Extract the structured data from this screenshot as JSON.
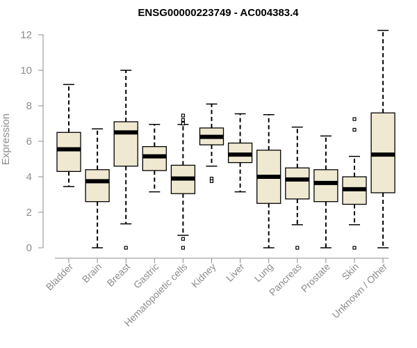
{
  "chart_data": {
    "type": "box",
    "title": "ENSG00000223749 - AC004383.4",
    "xlabel": "",
    "ylabel": "Expression",
    "ylim": [
      0,
      12.3
    ],
    "yticks": [
      0,
      2,
      4,
      6,
      8,
      10,
      12
    ],
    "grid": false,
    "colors": {
      "box_fill": "#efe9d2",
      "box_stroke": "#000000",
      "axis": "#8c8c8c",
      "title": "#000000"
    },
    "categories": [
      "Bladder",
      "Brain",
      "Breast",
      "Gastric",
      "Hematopoietic cells",
      "Kidney",
      "Liver",
      "Lung",
      "Pancreas",
      "Prostate",
      "Skin",
      "Unknown / Other"
    ],
    "boxes": [
      {
        "category": "Bladder",
        "whisker_low": 3.45,
        "q1": 4.3,
        "median": 5.55,
        "q3": 6.5,
        "whisker_high": 9.2,
        "outliers": []
      },
      {
        "category": "Brain",
        "whisker_low": 0,
        "q1": 2.6,
        "median": 3.75,
        "q3": 4.4,
        "whisker_high": 6.7,
        "outliers": []
      },
      {
        "category": "Breast",
        "whisker_low": 1.35,
        "q1": 4.6,
        "median": 6.5,
        "q3": 7.1,
        "whisker_high": 10.0,
        "outliers": [
          0
        ]
      },
      {
        "category": "Gastric",
        "whisker_low": 3.15,
        "q1": 4.35,
        "median": 5.15,
        "q3": 5.7,
        "whisker_high": 6.95,
        "outliers": []
      },
      {
        "category": "Hematopoietic cells",
        "whisker_low": 0.7,
        "q1": 3.05,
        "median": 3.9,
        "q3": 4.65,
        "whisker_high": 6.95,
        "outliers": [
          7.45,
          7.2,
          7.0,
          0.5,
          0.0
        ]
      },
      {
        "category": "Kidney",
        "whisker_low": 4.6,
        "q1": 5.8,
        "median": 6.25,
        "q3": 6.75,
        "whisker_high": 8.1,
        "outliers": [
          3.9,
          3.75
        ]
      },
      {
        "category": "Liver",
        "whisker_low": 3.15,
        "q1": 4.8,
        "median": 5.25,
        "q3": 5.9,
        "whisker_high": 7.55,
        "outliers": []
      },
      {
        "category": "Lung",
        "whisker_low": 0,
        "q1": 2.5,
        "median": 4.0,
        "q3": 5.5,
        "whisker_high": 7.5,
        "outliers": []
      },
      {
        "category": "Pancreas",
        "whisker_low": 1.3,
        "q1": 2.75,
        "median": 3.85,
        "q3": 4.5,
        "whisker_high": 6.8,
        "outliers": [
          0
        ]
      },
      {
        "category": "Prostate",
        "whisker_low": 0,
        "q1": 2.6,
        "median": 3.65,
        "q3": 4.4,
        "whisker_high": 6.3,
        "outliers": []
      },
      {
        "category": "Skin",
        "whisker_low": 1.3,
        "q1": 2.45,
        "median": 3.3,
        "q3": 4.0,
        "whisker_high": 5.15,
        "outliers": [
          7.25,
          6.65,
          0
        ]
      },
      {
        "category": "Unknown / Other",
        "whisker_low": 0,
        "q1": 3.1,
        "median": 5.25,
        "q3": 7.6,
        "whisker_high": 12.25,
        "outliers": []
      }
    ]
  }
}
